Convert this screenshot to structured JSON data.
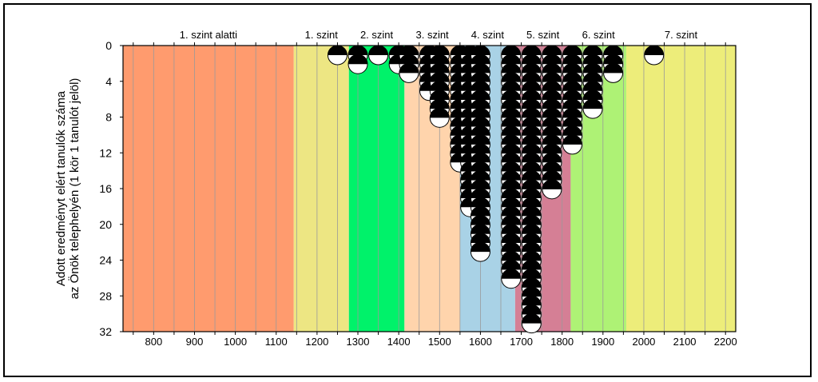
{
  "chart_data": {
    "type": "scatter",
    "ylabel_lines": [
      "Adott eredményt elért tanulók száma",
      "az Önök telephelyén (1 kör 1 tanulót jelöl)"
    ],
    "xlabel": "",
    "xlim": [
      725,
      2225
    ],
    "ylim": [
      0,
      32
    ],
    "y_reversed": true,
    "x_ticks": [
      800,
      900,
      1000,
      1100,
      1200,
      1300,
      1400,
      1500,
      1600,
      1700,
      1800,
      1900,
      2000,
      2100,
      2200
    ],
    "y_ticks": [
      0,
      4,
      8,
      12,
      16,
      20,
      24,
      28,
      32
    ],
    "grid_x_step": 50,
    "levels": [
      {
        "name": "1. szint alatti",
        "from": 725,
        "to": 1143,
        "color": "#ff9b6e"
      },
      {
        "name": "1. szint",
        "from": 1143,
        "to": 1278,
        "color": "#ede683"
      },
      {
        "name": "2. szint",
        "from": 1278,
        "to": 1414,
        "color": "#00f26a"
      },
      {
        "name": "3. szint",
        "from": 1414,
        "to": 1550,
        "color": "#ffd4ac"
      },
      {
        "name": "4. szint",
        "from": 1550,
        "to": 1685,
        "color": "#a9d2e6"
      },
      {
        "name": "5. szint",
        "from": 1685,
        "to": 1821,
        "color": "#d57f95"
      },
      {
        "name": "6. szint",
        "from": 1821,
        "to": 1957,
        "color": "#aef275"
      },
      {
        "name": "7. szint",
        "from": 1957,
        "to": 2225,
        "color": "#eded7a"
      }
    ],
    "columns": [
      {
        "x": 1250,
        "count": 1
      },
      {
        "x": 1300,
        "count": 2
      },
      {
        "x": 1350,
        "count": 1
      },
      {
        "x": 1400,
        "count": 2
      },
      {
        "x": 1425,
        "count": 3
      },
      {
        "x": 1475,
        "count": 5
      },
      {
        "x": 1500,
        "count": 8
      },
      {
        "x": 1550,
        "count": 13
      },
      {
        "x": 1575,
        "count": 18
      },
      {
        "x": 1600,
        "count": 23
      },
      {
        "x": 1675,
        "count": 26
      },
      {
        "x": 1725,
        "count": 31
      },
      {
        "x": 1775,
        "count": 16
      },
      {
        "x": 1825,
        "count": 11
      },
      {
        "x": 1875,
        "count": 7
      },
      {
        "x": 1925,
        "count": 3
      },
      {
        "x": 2025,
        "count": 1
      }
    ]
  }
}
